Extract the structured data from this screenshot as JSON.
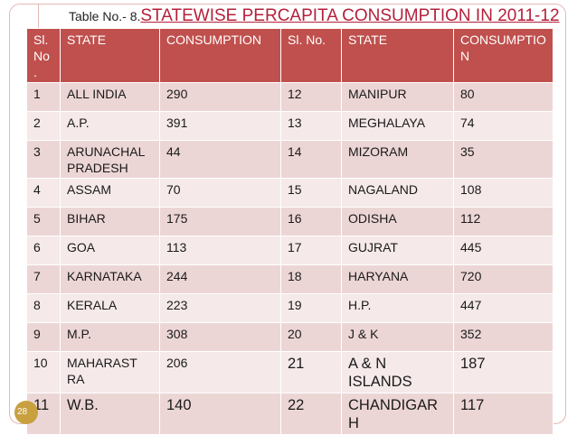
{
  "slide": {
    "title_prefix": "Table No.- 8.",
    "title_main": "STATEWISE  PERCAPITA CONSUMPTION IN 2011-12",
    "page_number": "28"
  },
  "table": {
    "headers": [
      "Sl. No .",
      "STATE",
      "CONSUMPTION",
      "Sl. No.",
      "STATE",
      "CONSUMPTIO N"
    ],
    "rows": [
      [
        "1",
        "ALL INDIA",
        "290",
        "12",
        "MANIPUR",
        "80"
      ],
      [
        "2",
        "A.P.",
        "391",
        "13",
        "MEGHALAYA",
        "74"
      ],
      [
        "3",
        "ARUNACHAL PRADESH",
        "44",
        "14",
        "MIZORAM",
        "35"
      ],
      [
        "4",
        "ASSAM",
        "70",
        "15",
        "NAGALAND",
        "108"
      ],
      [
        "5",
        "BIHAR",
        "175",
        "16",
        "ODISHA",
        "112"
      ],
      [
        "6",
        "GOA",
        "113",
        "17",
        "GUJRAT",
        "445"
      ],
      [
        "7",
        "KARNATAKA",
        "244",
        "18",
        "HARYANA",
        "720"
      ],
      [
        "8",
        "KERALA",
        "223",
        "19",
        "H.P.",
        "447"
      ],
      [
        "9",
        "M.P.",
        "308",
        "20",
        "J & K",
        "352"
      ],
      [
        "10",
        "MAHARAST RA",
        "206",
        "21",
        "A & N ISLANDS",
        "187"
      ],
      [
        "11",
        "W.B.",
        "140",
        "22",
        "CHANDIGAR H",
        "117"
      ]
    ]
  },
  "colors": {
    "header_bg": "#c0504d",
    "row_odd_bg": "#ecd6d5",
    "row_even_bg": "#f5e9e9",
    "title_accent": "#b4203a",
    "page_badge": "#c8a040"
  }
}
